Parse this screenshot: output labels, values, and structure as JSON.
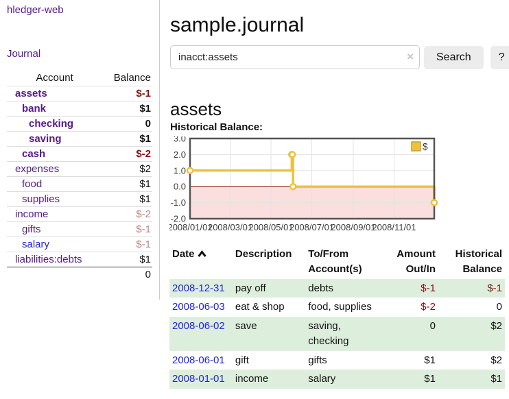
{
  "colors": {
    "visited_link": "#551A8B",
    "unvisited_link": "#2222DD",
    "negative": "#8B0E0E",
    "negative_muted": "#BE8181",
    "row_highlight": "#DDEEDD",
    "series_gold": "#EDC240",
    "chart_border": "#545454",
    "gridline": "#E3E3E3",
    "negative_region": "#FBDEDE",
    "zero_line": "#8B1A1A",
    "button_bg": "#ECECEC"
  },
  "sidebar": {
    "app_title": "hledger-web",
    "journal_link": "Journal",
    "accounts_table": {
      "headers": {
        "account": "Account",
        "balance": "Balance"
      },
      "rows": [
        {
          "name": "assets",
          "balance": "$-1",
          "depth": 1,
          "bold": true,
          "balance_color": "negative"
        },
        {
          "name": "bank",
          "balance": "$1",
          "depth": 2,
          "bold": true,
          "balance_color": "normal"
        },
        {
          "name": "checking",
          "balance": "0",
          "depth": 3,
          "bold": true,
          "balance_color": "normal"
        },
        {
          "name": "saving",
          "balance": "$1",
          "depth": 3,
          "bold": true,
          "balance_color": "normal"
        },
        {
          "name": "cash",
          "balance": "$-2",
          "depth": 2,
          "bold": true,
          "balance_color": "negative"
        },
        {
          "name": "expenses",
          "balance": "$2",
          "depth": 1,
          "bold": false,
          "balance_color": "normal"
        },
        {
          "name": "food",
          "balance": "$1",
          "depth": 2,
          "bold": false,
          "balance_color": "normal"
        },
        {
          "name": "supplies",
          "balance": "$1",
          "depth": 2,
          "bold": false,
          "balance_color": "normal"
        },
        {
          "name": "income",
          "balance": "$-2",
          "depth": 1,
          "bold": false,
          "balance_color": "negative-muted"
        },
        {
          "name": "gifts",
          "balance": "$-1",
          "depth": 2,
          "bold": false,
          "balance_color": "negative-muted"
        },
        {
          "name": "salary",
          "balance": "$-1",
          "depth": 2,
          "bold": false,
          "balance_color": "negative-muted",
          "link_state": "unvisited"
        },
        {
          "name": "liabilities:debts",
          "balance": "$1",
          "depth": 1,
          "bold": false,
          "balance_color": "normal"
        }
      ],
      "total": "0"
    }
  },
  "header": {
    "title": "sample.journal"
  },
  "search": {
    "query": "inacct:assets",
    "clear_icon": "×",
    "button_label": "Search",
    "help_label": "?"
  },
  "account_page": {
    "heading": "assets",
    "chart_label": "Historical Balance:"
  },
  "chart_data": {
    "type": "line",
    "style": "step",
    "title": "Historical Balance",
    "series": [
      {
        "name": "$",
        "color": "#EDC240",
        "points": [
          [
            "2008-01-01",
            1
          ],
          [
            "2008-06-01",
            2
          ],
          [
            "2008-06-02",
            2
          ],
          [
            "2008-06-03",
            0
          ],
          [
            "2008-12-31",
            -1
          ]
        ]
      }
    ],
    "ylim": [
      -2,
      3
    ],
    "yticks": [
      "3.0",
      "2.0",
      "1.0",
      "0.0",
      "-1.0",
      "-2.0"
    ],
    "ytick_values": [
      3,
      2,
      1,
      0,
      -1,
      -2
    ],
    "xlim": [
      "2008-01-01",
      "2008-12-31"
    ],
    "xticks": [
      "2008/01/01",
      "2008/03/01",
      "2008/05/01",
      "2008/07/01",
      "2008/09/01",
      "2008/11/01"
    ],
    "grid": true,
    "legend": {
      "label": "$",
      "position": "top-right"
    },
    "negative_region": true
  },
  "transactions": {
    "columns": {
      "date": "Date",
      "description": "Description",
      "accounts": "To/From Account(s)",
      "amount": "Amount Out/In",
      "balance": "Historical Balance"
    },
    "rows": [
      {
        "date": "2008-12-31",
        "description": "pay off",
        "accounts": "debts",
        "amount": "$-1",
        "balance": "$-1",
        "amount_negative": true,
        "balance_negative": true,
        "highlight": true
      },
      {
        "date": "2008-06-03",
        "description": "eat & shop",
        "accounts": "food, supplies",
        "amount": "$-2",
        "balance": "0",
        "amount_negative": true,
        "balance_negative": false,
        "highlight": false
      },
      {
        "date": "2008-06-02",
        "description": "save",
        "accounts": "saving, checking",
        "amount": "0",
        "balance": "$2",
        "amount_negative": false,
        "balance_negative": false,
        "highlight": true
      },
      {
        "date": "2008-06-01",
        "description": "gift",
        "accounts": "gifts",
        "amount": "$1",
        "balance": "$2",
        "amount_negative": false,
        "balance_negative": false,
        "highlight": false
      },
      {
        "date": "2008-01-01",
        "description": "income",
        "accounts": "salary",
        "amount": "$1",
        "balance": "$1",
        "amount_negative": false,
        "balance_negative": false,
        "highlight": true
      }
    ]
  }
}
